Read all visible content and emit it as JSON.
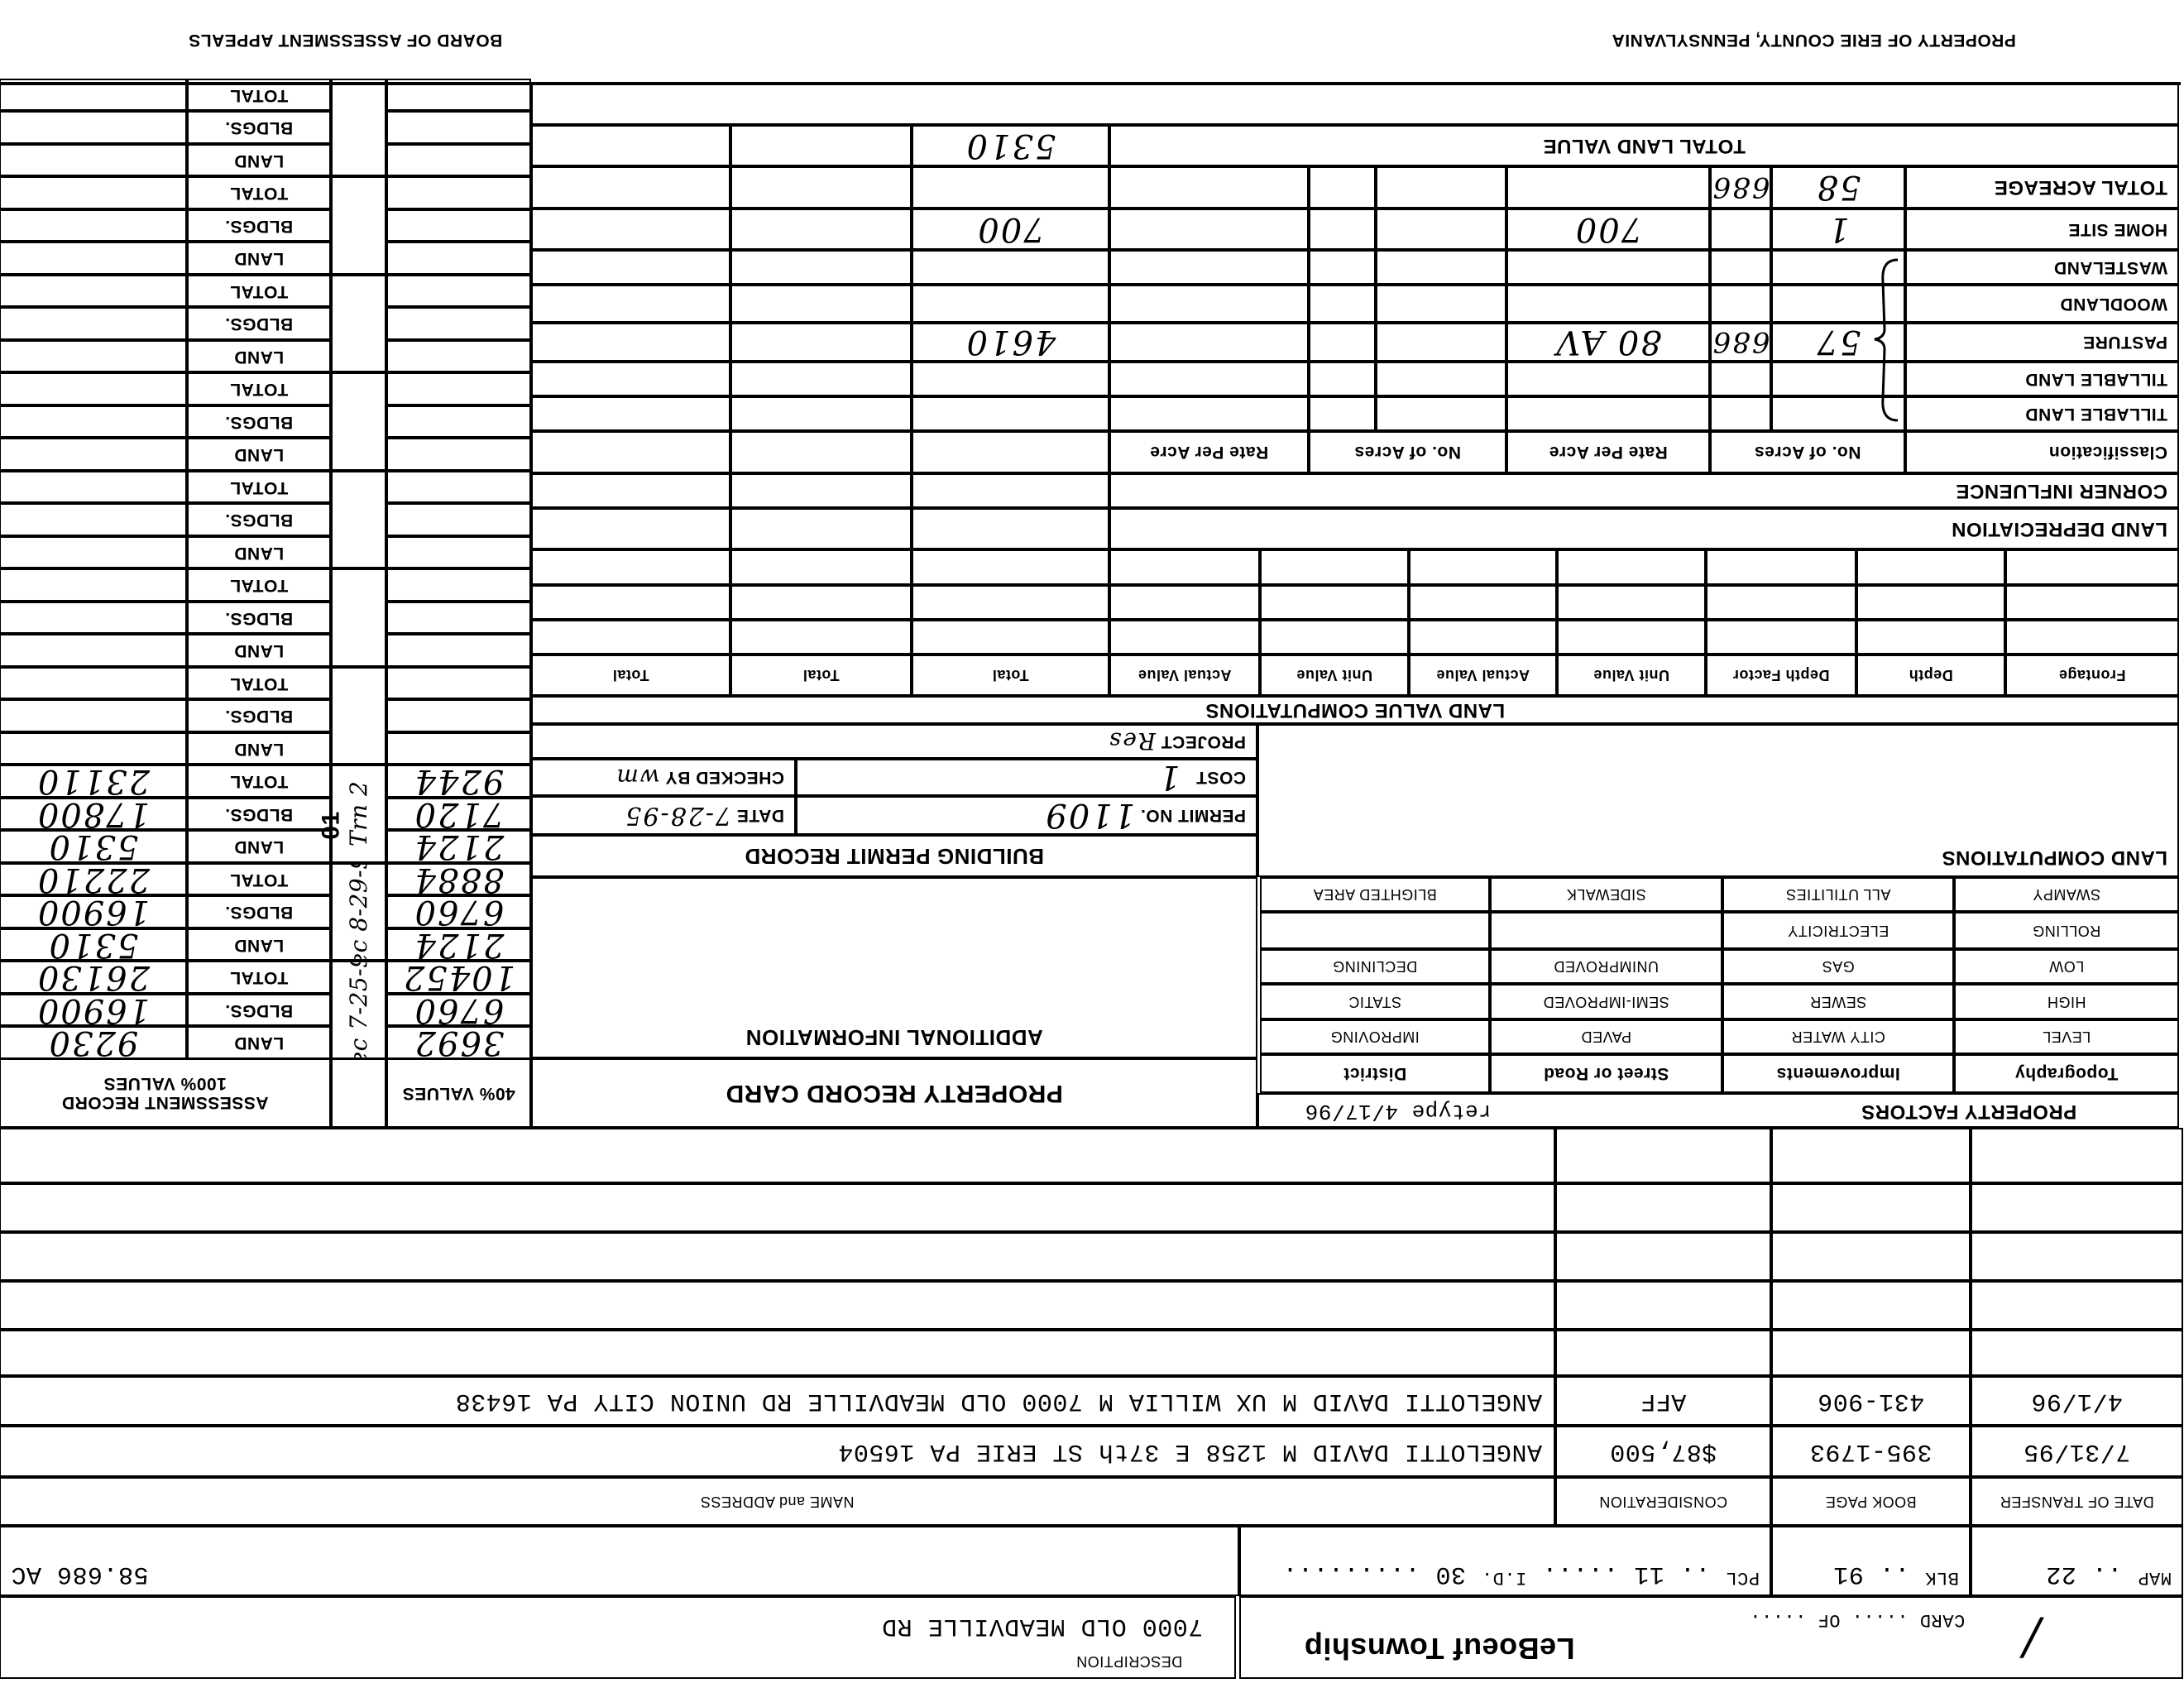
{
  "header": {
    "county": "PROPERTY OF ERIE COUNTY, PENNSYLVANIA",
    "board": "BOARD OF ASSESSMENT APPEALS"
  },
  "land": {
    "total_land_value_label": "TOTAL LAND VALUE",
    "total_land_value": "5310",
    "classification_header": {
      "classification": "Classification",
      "acres": "No. of Acres",
      "rate": "Rate Per Acre"
    },
    "rows": [
      {
        "label": "TILLABLE LAND"
      },
      {
        "label": "TILLABLE LAND"
      },
      {
        "label": "PASTURE",
        "acres_whole": "57",
        "acres_decimal": "686",
        "rate": "80 AV",
        "value": "4610"
      },
      {
        "label": "WOODLAND"
      },
      {
        "label": "WASTELAND"
      },
      {
        "label": "HOME SITE",
        "acres_whole": "1",
        "rate": "700",
        "value": "700"
      },
      {
        "label": "TOTAL ACREAGE",
        "acres_whole": "58",
        "acres_decimal": "686"
      }
    ],
    "corner_influence": "CORNER INFLUENCE",
    "land_depreciation": "LAND DEPRECIATION",
    "lvc_title": "LAND VALUE COMPUTATIONS",
    "lvc_headers": [
      "Frontage",
      "Depth",
      "Depth Factor",
      "Unit Value",
      "Actual Value",
      "Unit Value",
      "Actual Value",
      "Total",
      "Total",
      "Total"
    ],
    "land_computations": "LAND COMPUTATIONS"
  },
  "property_factors": {
    "title": "PROPERTY FACTORS",
    "note": "retype 4/17/96",
    "headers": [
      "Topography",
      "Improvements",
      "Street or Road",
      "District"
    ],
    "rows": [
      [
        "LEVEL",
        "CITY WATER",
        "PAVED",
        "IMPROVING"
      ],
      [
        "HIGH",
        "SEWER",
        "SEMI-IMPROVED",
        "STATIC"
      ],
      [
        "LOW",
        "GAS",
        "UNIMPROVED",
        "DECLINING"
      ],
      [
        "ROLLING",
        "ELECTRICITY",
        "",
        ""
      ],
      [
        "SWAMPY",
        "ALL UTILITIES",
        "SIDEWALK",
        "BLIGHTED AREA"
      ]
    ]
  },
  "permit": {
    "project_label": "PROJECT",
    "project_value": "Res",
    "cost_label": "COST",
    "cost_value": "1",
    "checked_label": "CHECKED BY",
    "checked_value": "wm",
    "permit_label": "PERMIT NO.",
    "permit_value": "1109",
    "date_label": "DATE",
    "date_value": "7-28-95",
    "title": "BUILDING PERMIT RECORD"
  },
  "additional_info": "ADDITIONAL INFORMATION",
  "card_title": "PROPERTY RECORD CARD",
  "assessment": {
    "header_line1": "ASSESSMENT RECORD",
    "header_line2": "100% VALUES",
    "header_40": "40% VALUES",
    "row_labels": [
      "LAND",
      "BLDGS.",
      "TOTAL"
    ],
    "groups": [
      {
        "values": [
          "9230",
          "16900",
          "26130"
        ],
        "values40": [
          "3692",
          "6760",
          "10452"
        ],
        "note": "Rec 7-25-93"
      },
      {
        "values": [
          "5310",
          "16900",
          "22210"
        ],
        "values40": [
          "2124",
          "6760",
          "8884"
        ],
        "note": "Rec 8-29-95"
      },
      {
        "values": [
          "5310",
          "17800",
          "23110"
        ],
        "values40": [
          "2124",
          "7120",
          "9244"
        ],
        "note": "Trn 2"
      }
    ],
    "stamp": "01"
  },
  "transfers": {
    "headers": [
      "DATE OF TRANSFER",
      "BOOK PAGE",
      "CONSIDERATION",
      "NAME and ADDRESS"
    ],
    "rows": [
      {
        "date": "7/31/95",
        "book_page": "395-1793",
        "consideration": "$87,500",
        "name_address": "ANGELOTTI DAVID M   1258 E 37th ST ERIE PA   16504"
      },
      {
        "date": "4/1/96",
        "book_page": "431-906",
        "consideration": "AFF",
        "name_address": "ANGELOTTI DAVID M UX WILLIA M    7000 OLD MEADVILLE RD   UNION CITY PA   16438"
      }
    ]
  },
  "parcel": {
    "map_label": "MAP",
    "map": "22",
    "blk_label": "BLK",
    "blk": "91",
    "pcl_label": "PCL",
    "pcl": "11",
    "id_label": "I.D.",
    "id": "30",
    "acreage": "58.686 AC"
  },
  "footer": {
    "card_label": "CARD",
    "of_label": "OF",
    "township": "LeBoeuf Township",
    "description_label": "DESCRIPTION",
    "description": "7000 OLD MEADVILLE RD"
  }
}
